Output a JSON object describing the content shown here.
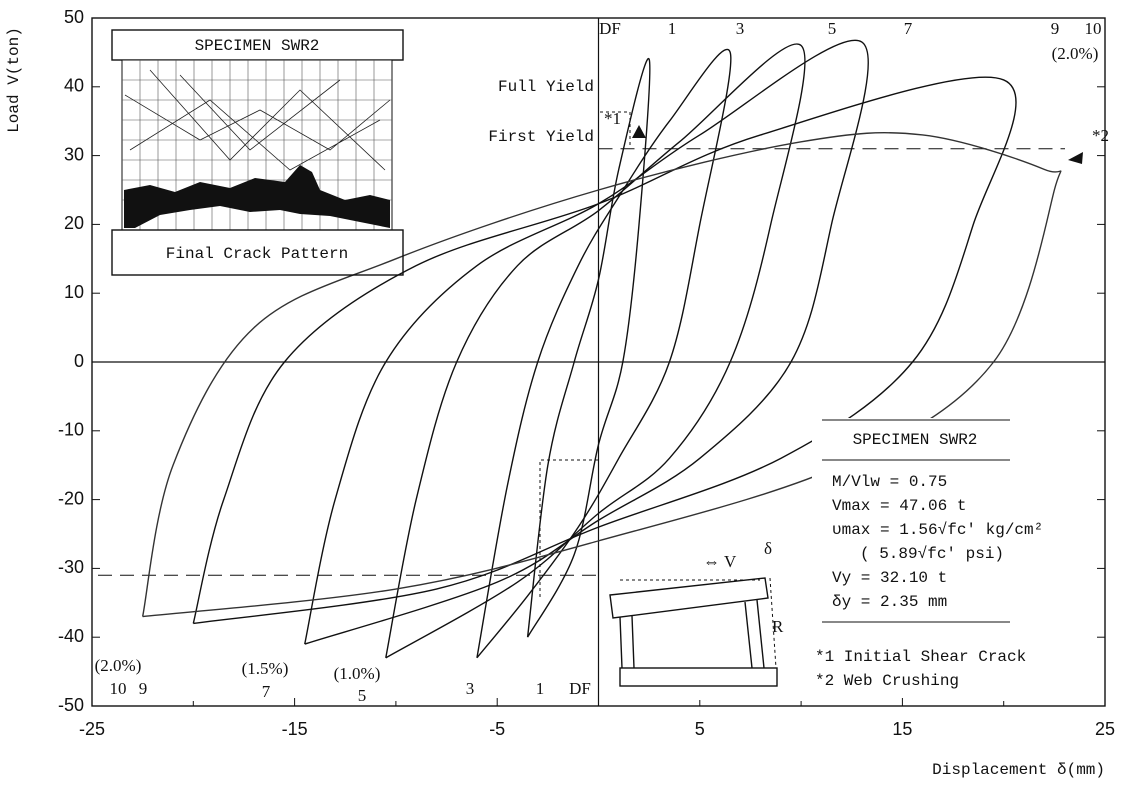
{
  "chart_data": {
    "type": "line",
    "x_label": "Displacement δ(mm)",
    "y_label": "Load V(ton)",
    "xlim": [
      -25,
      25
    ],
    "ylim": [
      -50,
      50
    ],
    "xticks": [
      -25,
      -15,
      -5,
      5,
      15,
      25
    ],
    "x_minor_ticks": [
      -20,
      -10,
      0,
      10,
      20
    ],
    "yticks": [
      -50,
      -40,
      -30,
      -20,
      -10,
      0,
      10,
      20,
      30,
      40,
      50
    ],
    "reference_lines": [
      31,
      -31
    ],
    "series": [
      {
        "color": "#111111",
        "x": [
          -3.5,
          -2.5,
          -1.2,
          0,
          1,
          2.5,
          2,
          1.2,
          0,
          -1.2,
          -3.5
        ],
        "values": [
          -40,
          -15,
          0,
          12,
          28,
          44,
          20,
          0,
          -12,
          -28,
          -40
        ]
      },
      {
        "color": "#111111",
        "x": [
          -6,
          -4.5,
          -3,
          -1,
          1,
          3.5,
          6.5,
          5,
          3.5,
          1,
          -1,
          -3.5,
          -6
        ],
        "values": [
          -43,
          -18,
          0,
          14,
          24,
          35,
          45,
          20,
          0,
          -14,
          -24,
          -34,
          -43
        ]
      },
      {
        "color": "#111111",
        "x": [
          -10.5,
          -9,
          -7,
          -4,
          0,
          4,
          10,
          8.5,
          6.5,
          3.5,
          0,
          -4,
          -10.5
        ],
        "values": [
          -43,
          -20,
          0,
          14,
          22,
          32,
          46,
          20,
          0,
          -14,
          -22,
          -32,
          -43
        ]
      },
      {
        "color": "#111111",
        "x": [
          -14.5,
          -13,
          -10.5,
          -6,
          0,
          5,
          13,
          11.5,
          9.5,
          5,
          0,
          -5,
          -14.5
        ],
        "values": [
          -41,
          -20,
          0,
          14,
          23,
          33,
          46.5,
          20,
          0,
          -14,
          -23,
          -32,
          -41
        ]
      },
      {
        "color": "#111111",
        "x": [
          -20,
          -18.5,
          -15.5,
          -9,
          0,
          8,
          20,
          18.5,
          15.5,
          9,
          0,
          -8,
          -20
        ],
        "values": [
          -38,
          -20,
          0,
          14,
          23,
          33,
          41,
          20,
          0,
          -14,
          -24,
          -33,
          -38
        ]
      },
      {
        "color": "#333333",
        "x": [
          -22.5,
          -21,
          -17,
          -10,
          0,
          10,
          16,
          22,
          22.5,
          19.5,
          12,
          0,
          -10,
          -22.5
        ],
        "values": [
          -37,
          -15,
          5,
          15,
          25,
          32,
          33,
          28,
          25,
          0,
          -15,
          -26,
          -33,
          -37
        ]
      }
    ],
    "annotations": {
      "top_cycles": [
        "DF",
        "1",
        "3",
        "5",
        "7",
        "9",
        "10",
        "(2.0%)"
      ],
      "bottom_cycles": [
        "(2.0%)",
        "10",
        "9",
        "(1.5%)",
        "7",
        "(1.0%)",
        "5",
        "3",
        "1",
        "DF"
      ],
      "full_yield": "Full Yield",
      "first_yield": "First Yield",
      "mark1": "*1",
      "mark2": "*2",
      "inset_title": "SPECIMEN SWR2",
      "inset_caption": "Final Crack Pattern",
      "notes_title": "SPECIMEN SWR2",
      "notes": [
        "M/Vlw = 0.75",
        "Vmax = 47.06 t",
        "υmax = 1.56√fc' kg/cm²",
        "( 5.89√fc' psi)",
        "Vy = 32.10 t",
        "δy = 2.35 mm"
      ],
      "footnotes": [
        "*1 Initial Shear Crack",
        "*2 Web Crushing"
      ],
      "frame_v": "⇔ V",
      "frame_delta": "δ",
      "frame_r": "R"
    }
  }
}
